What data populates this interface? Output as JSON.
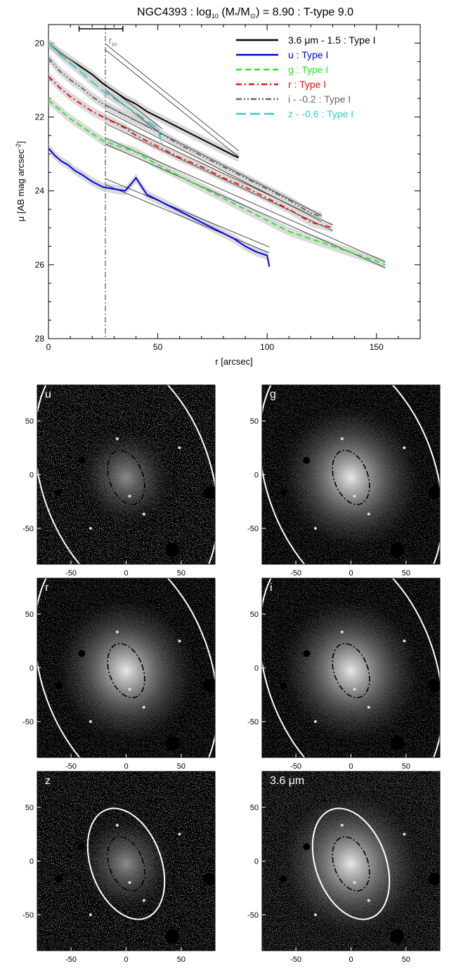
{
  "profile_plot": {
    "title": "NGC4393 : log10 (M*/M⊙) = 8.90 : T-type 9.0",
    "title_parts": {
      "prefix": "NGC4393 : log",
      "sub": "10",
      "mid": " (M",
      "star": "*",
      "slash": "/M",
      "sun": "⊙",
      "suffix": ") = 8.90 : T-type 9.0"
    },
    "xlabel": "r [arcsec]",
    "ylabel_main": "μ [AB mag arcsec",
    "ylabel_sup": "-2",
    "ylabel_close": "]",
    "rin_label": "r",
    "rin_sub": "in"
  },
  "chart_data": [
    {
      "type": "line",
      "title": "NGC4393 : log10 (M*/M⊙) = 8.90 : T-type 9.0",
      "xlabel": "r [arcsec]",
      "ylabel": "μ [AB mag arcsec-2]",
      "xlim": [
        0,
        170
      ],
      "ylim": [
        28,
        19.5
      ],
      "y_inverted": true,
      "xticks": [
        0,
        50,
        100,
        150
      ],
      "yticks": [
        20,
        22,
        24,
        26,
        28
      ],
      "legend_position": "top-right",
      "r_in": 26,
      "series": [
        {
          "name": "3.6 μm - 1.5 : Type I",
          "color": "#000000",
          "dash": "solid",
          "x": [
            0,
            5,
            10,
            15,
            20,
            25,
            30,
            35,
            40,
            45,
            50,
            55,
            60,
            65,
            70,
            75,
            80,
            85,
            87
          ],
          "y": [
            20.0,
            20.25,
            20.45,
            20.65,
            20.85,
            21.1,
            21.3,
            21.5,
            21.65,
            21.85,
            22.0,
            22.15,
            22.3,
            22.45,
            22.6,
            22.75,
            22.9,
            23.05,
            23.1
          ],
          "fit_y": [
            20.1,
            23.0
          ]
        },
        {
          "name": "u : Type I",
          "color": "#0000ee",
          "dash": "solid",
          "x": [
            0,
            3,
            6,
            9,
            12,
            15,
            20,
            25,
            30,
            35,
            38,
            40,
            45,
            50,
            55,
            60,
            65,
            70,
            75,
            80,
            85,
            90,
            95,
            100,
            101
          ],
          "y": [
            22.85,
            23.05,
            23.2,
            23.3,
            23.45,
            23.55,
            23.75,
            23.9,
            23.95,
            24.0,
            23.8,
            23.65,
            24.1,
            24.25,
            24.4,
            24.55,
            24.7,
            24.85,
            25.0,
            25.15,
            25.3,
            25.5,
            25.65,
            25.75,
            26.05
          ],
          "fit_y": [
            23.75,
            25.6
          ]
        },
        {
          "name": "g : Type I",
          "color": "#22ee22",
          "dash": "dash",
          "x": [
            0,
            5,
            10,
            15,
            20,
            25,
            30,
            35,
            40,
            50,
            60,
            70,
            80,
            90,
            100,
            110,
            120,
            130,
            140,
            150,
            154
          ],
          "y": [
            21.55,
            21.8,
            22.05,
            22.25,
            22.45,
            22.65,
            22.75,
            22.85,
            22.95,
            23.3,
            23.6,
            23.9,
            24.2,
            24.5,
            24.8,
            25.1,
            25.3,
            25.5,
            25.7,
            25.9,
            26.0
          ],
          "fit_y": [
            22.65,
            26.0
          ]
        },
        {
          "name": "r : Type I",
          "color": "#ee1111",
          "dash": "dashdot",
          "x": [
            0,
            5,
            10,
            15,
            20,
            25,
            30,
            35,
            40,
            50,
            60,
            70,
            80,
            90,
            100,
            110,
            120,
            130
          ],
          "y": [
            20.9,
            21.2,
            21.45,
            21.65,
            21.85,
            22.0,
            22.15,
            22.3,
            22.5,
            22.8,
            23.1,
            23.35,
            23.65,
            23.9,
            24.2,
            24.5,
            24.85,
            25.0
          ],
          "fit_y": [
            22.1,
            25.0
          ]
        },
        {
          "name": "i - -0.2 : Type I",
          "color": "#666666",
          "dash": "dashdotdot",
          "x": [
            0,
            5,
            10,
            15,
            20,
            25,
            30,
            35,
            40,
            50,
            60,
            70,
            80,
            90,
            100,
            110,
            120,
            125
          ],
          "y": [
            20.4,
            20.75,
            21.0,
            21.2,
            21.45,
            21.65,
            21.8,
            21.95,
            22.1,
            22.4,
            22.75,
            23.05,
            23.35,
            23.65,
            23.95,
            24.25,
            24.6,
            24.7
          ],
          "fit_y": [
            21.75,
            24.75
          ]
        },
        {
          "name": "z - -0.6 : Type I",
          "color": "#33cccc",
          "dash": "longdash",
          "x": [
            0,
            5,
            10,
            15,
            20,
            25,
            30,
            35,
            40,
            45,
            50,
            52
          ],
          "y": [
            20.0,
            20.3,
            20.55,
            20.8,
            21.05,
            21.3,
            21.5,
            21.7,
            21.9,
            22.1,
            22.3,
            22.75
          ],
          "fit_y": [
            21.2,
            22.4
          ]
        }
      ]
    }
  ],
  "image_panels": [
    {
      "id": "u",
      "label": "u",
      "yticks": [
        "50",
        "0",
        "-50"
      ],
      "xticks": [
        "-50",
        "0",
        "50"
      ]
    },
    {
      "id": "g",
      "label": "g",
      "yticks": [
        "50",
        "0",
        "-50"
      ],
      "xticks": [
        "-50",
        "0",
        "50"
      ]
    },
    {
      "id": "r",
      "label": "r",
      "yticks": [
        "50",
        "0",
        "-50"
      ],
      "xticks": [
        "-50",
        "0",
        "50"
      ]
    },
    {
      "id": "i",
      "label": "i",
      "yticks": [
        "50",
        "0",
        "-50"
      ],
      "xticks": [
        "-50",
        "0",
        "50"
      ]
    },
    {
      "id": "z",
      "label": "z",
      "yticks": [
        "50",
        "0",
        "-50"
      ],
      "xticks": [
        "-50",
        "0",
        "50"
      ]
    },
    {
      "id": "irac",
      "label": "3.6 μm",
      "yticks": [
        "50",
        "0",
        "-50"
      ],
      "xticks": [
        "-50",
        "0",
        "50"
      ]
    }
  ]
}
